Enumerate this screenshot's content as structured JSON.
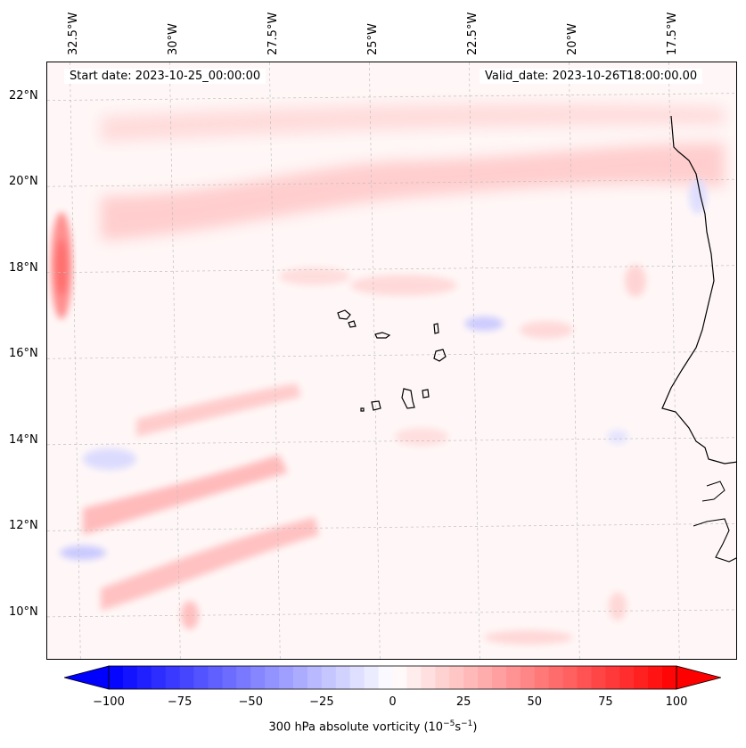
{
  "map": {
    "start_date": "Start date: 2023-10-25_00:00:00",
    "valid_date": "Valid_date: 2023-10-26T18:00:00.00",
    "lon_labels": [
      "32.5°W",
      "30°W",
      "27.5°W",
      "25°W",
      "22.5°W",
      "20°W",
      "17.5°W"
    ],
    "lat_labels": [
      "22°N",
      "20°N",
      "18°N",
      "16°N",
      "14°N",
      "12°N",
      "10°N"
    ],
    "lon_values": [
      -32.5,
      -30,
      -27.5,
      -25,
      -22.5,
      -20,
      -17.5
    ],
    "lat_values": [
      22,
      20,
      18,
      16,
      14,
      12,
      10
    ],
    "extent": {
      "lon_min": -33.2,
      "lon_max": -15.9,
      "lat_min": 8.9,
      "lat_max": 22.8
    },
    "field": "300 hPa absolute vorticity",
    "colormap": "bwr",
    "colors": {
      "negative": "#0000ff",
      "zero": "#ffffff",
      "positive": "#ff0000",
      "coast": "#000000",
      "grid": "#b0b0b0"
    }
  },
  "colorbar": {
    "ticks": [
      "−100",
      "−75",
      "−50",
      "−25",
      "0",
      "25",
      "50",
      "75",
      "100"
    ],
    "tick_values": [
      -100,
      -75,
      -50,
      -25,
      0,
      25,
      50,
      75,
      100
    ],
    "label": "300 hPa absolute vorticity (10",
    "label_exp1": "−5",
    "label_mid": "s",
    "label_exp2": "−1",
    "label_end": ")"
  }
}
